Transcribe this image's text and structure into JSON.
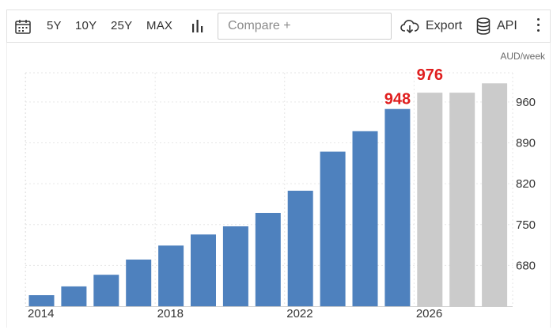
{
  "toolbar": {
    "ranges": [
      "5Y",
      "10Y",
      "25Y",
      "MAX"
    ],
    "compare_placeholder": "Compare +",
    "export_label": "Export",
    "api_label": "API"
  },
  "chart_data": {
    "type": "bar",
    "unit": "AUD/week",
    "x": [
      2014,
      2015,
      2016,
      2017,
      2018,
      2019,
      2020,
      2021,
      2022,
      2023,
      2024,
      2025,
      2026,
      2027,
      2028
    ],
    "values": [
      629,
      644,
      664,
      690,
      714,
      733,
      747,
      770,
      808,
      875,
      910,
      948,
      976,
      976,
      992
    ],
    "forecast_from_index": 12,
    "ylim": [
      610,
      1010
    ],
    "yticks": [
      680,
      750,
      820,
      890,
      960
    ],
    "xticks": [
      "2014",
      "2018",
      "2022",
      "2026"
    ],
    "data_labels": [
      {
        "index": 11,
        "text": "948"
      },
      {
        "index": 12,
        "text": "976"
      }
    ],
    "colors": {
      "actual": "#4e81be",
      "forecast": "#cbcbcb",
      "label": "#e01e1e"
    },
    "grid": true
  }
}
